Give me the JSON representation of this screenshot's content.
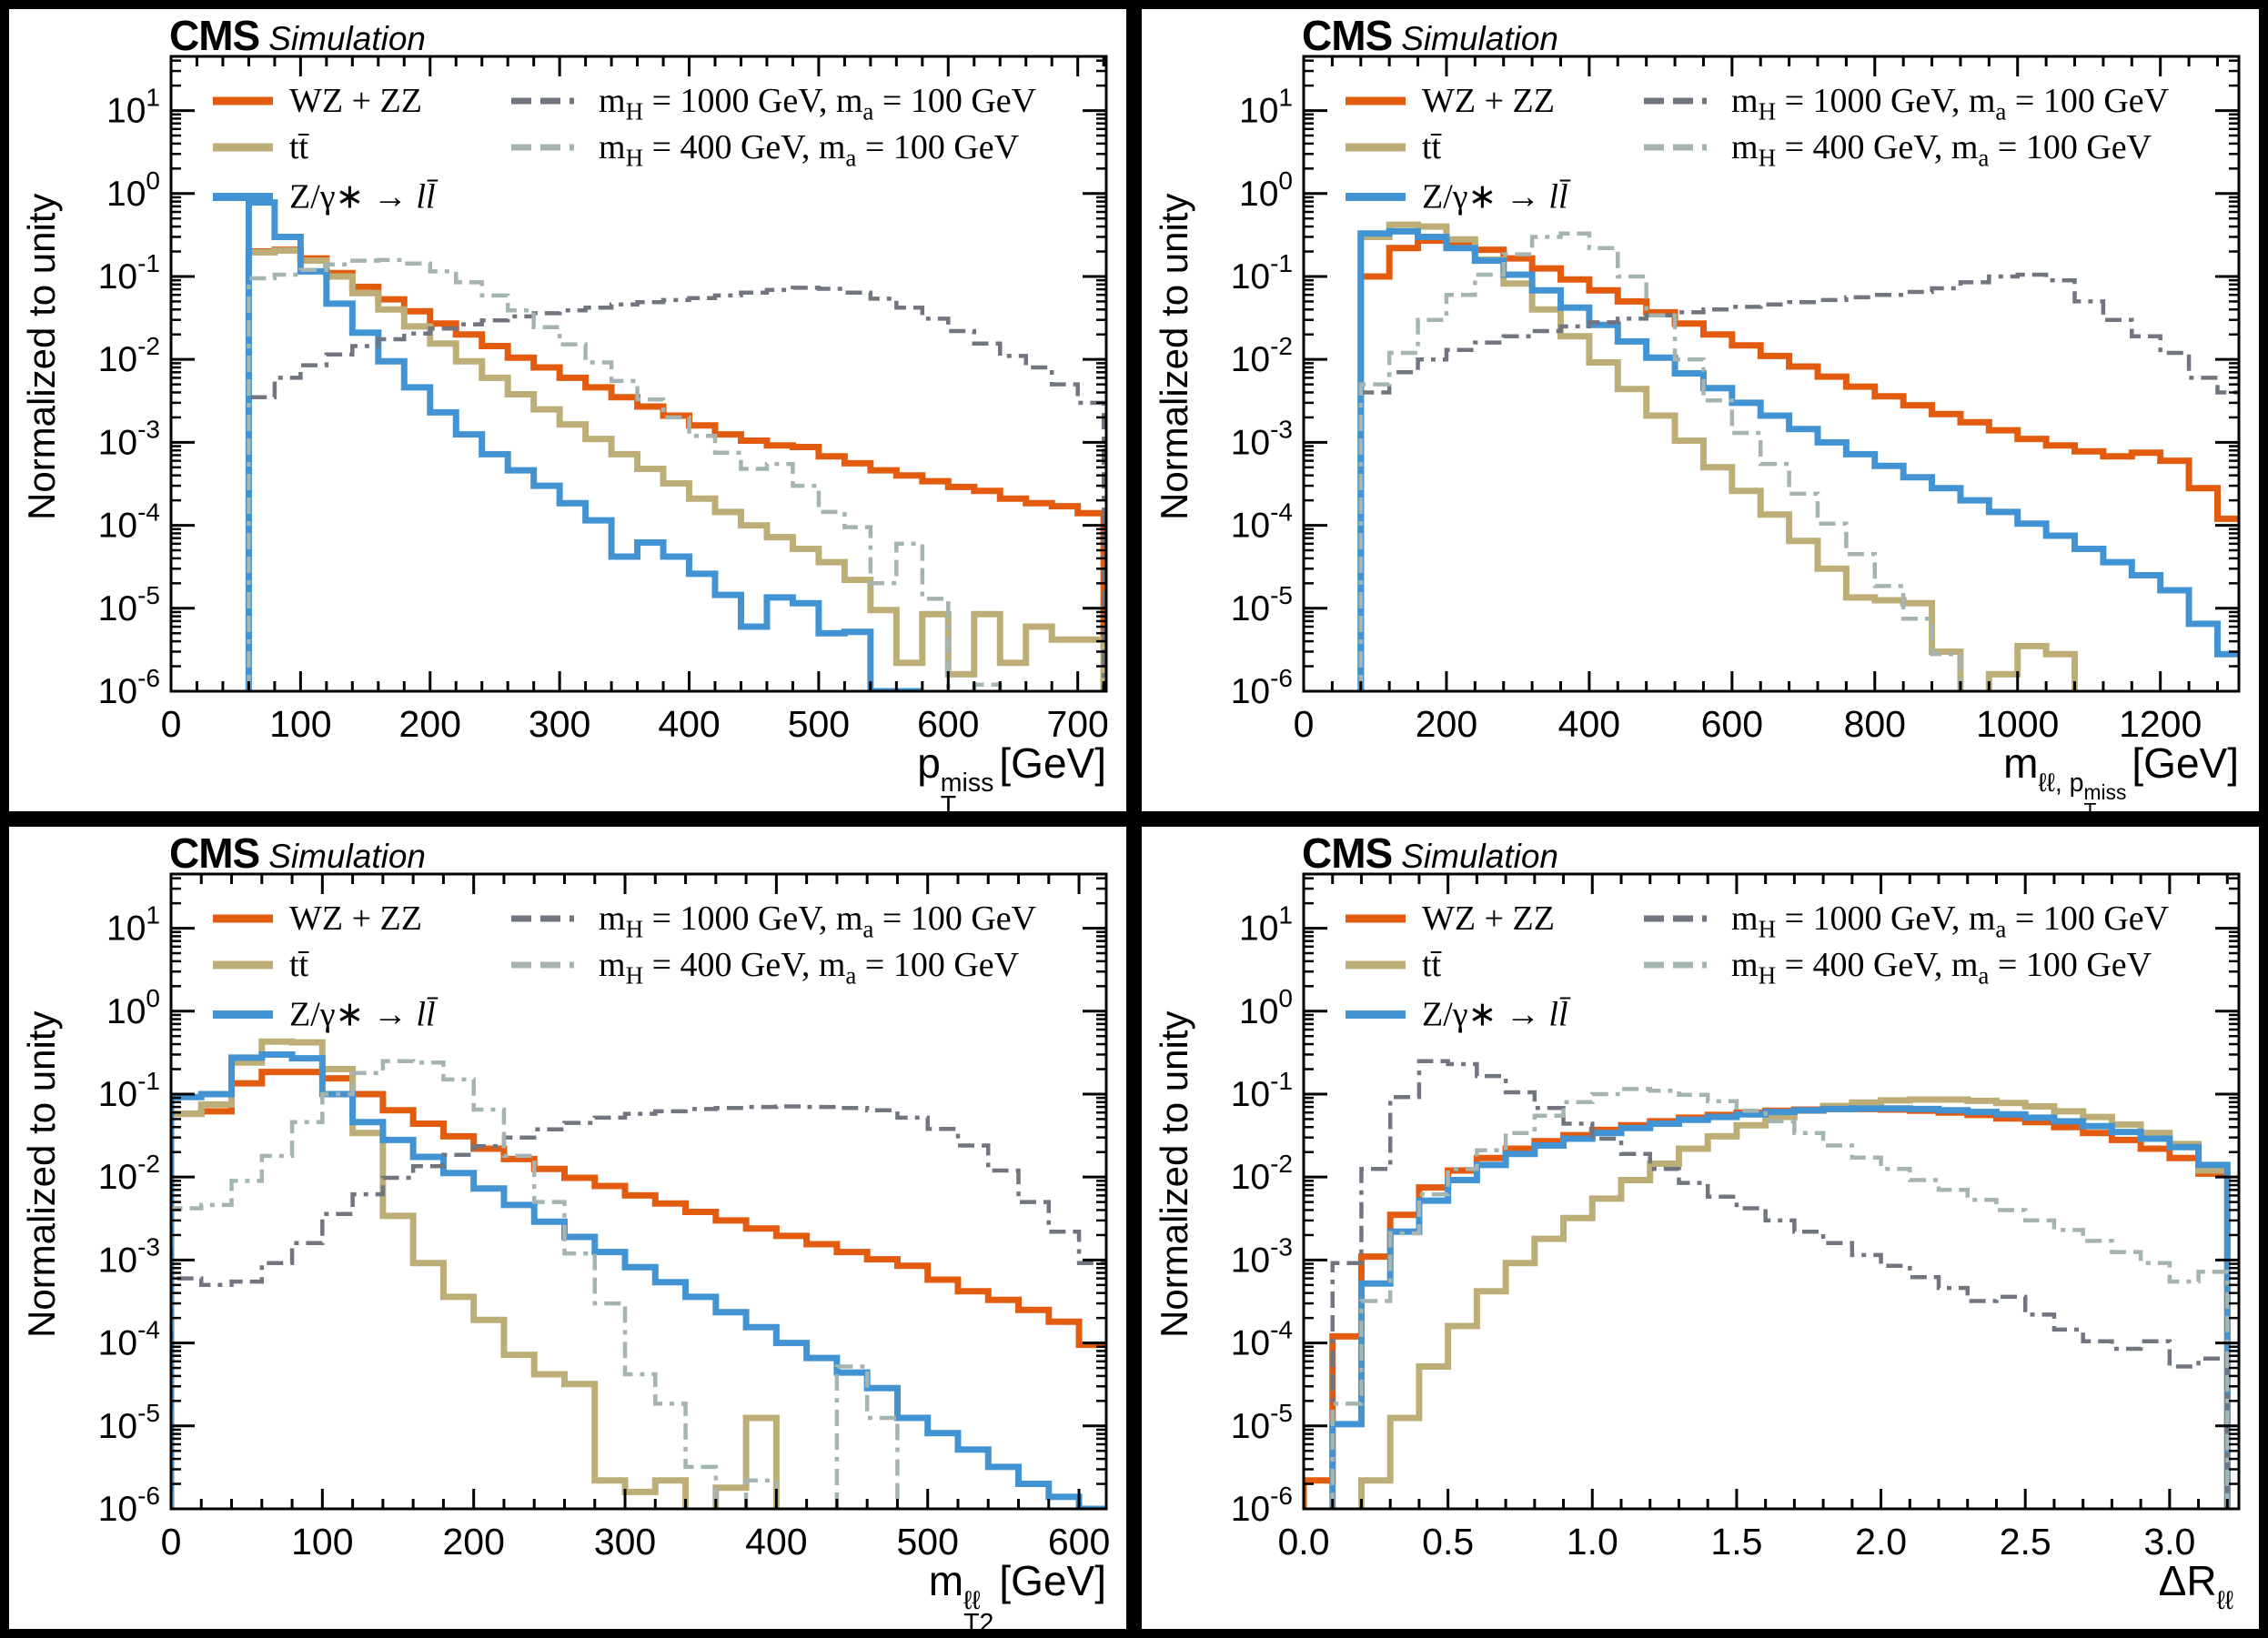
{
  "branding": {
    "cms": "CMS",
    "sim": "Simulation"
  },
  "ylabel": "Normalized to unity",
  "colors": {
    "wzzz": "#e35b0e",
    "ttbar": "#bcae76",
    "dy": "#4193d4",
    "mh1000": "#717580",
    "mh400": "#a4b4b0",
    "frame": "#000000"
  },
  "legend": {
    "wzzz_label": "WZ + ZZ",
    "ttbar_label": "tt̄",
    "dy_pre": "Z/γ∗ → ",
    "dy_lep": "ll̄",
    "sig1": {
      "m1": "m",
      "s1": "H",
      "t1": " = 1000 GeV, ",
      "m2": "m",
      "s2": "a",
      "t2": " = 100 GeV"
    },
    "sig2": {
      "m1": "m",
      "s1": "H",
      "t1": " = 400 GeV, ",
      "m2": "m",
      "s2": "a",
      "t2": " = 100 GeV"
    }
  },
  "panels": [
    {
      "xlabel": {
        "base": "p",
        "sup": "miss",
        "sub": "T",
        "unit": "[GeV]"
      }
    },
    {
      "xlabel": {
        "base": "m",
        "sub": "T",
        "sup1": "ℓℓ, p",
        "sup1_sup": "miss",
        "sup1_sub": "T",
        "unit": "[GeV]"
      }
    },
    {
      "xlabel": {
        "base": "m",
        "sup": "ℓℓ",
        "sub": "T2",
        "unit": "[GeV]"
      }
    },
    {
      "xlabel": {
        "base": "ΔR",
        "sup": "ℓℓ",
        "sub": "",
        "unit": ""
      }
    }
  ],
  "yticks_exponents": [
    1,
    0,
    -1,
    -2,
    -3,
    -4,
    -5,
    -6
  ],
  "chart_data": [
    {
      "type": "histogram-step",
      "ylog": true,
      "title": "CMS Simulation",
      "xlabel": "pT_miss [GeV]",
      "ylabel": "Normalized to unity",
      "xlim": [
        0,
        722
      ],
      "ylim": [
        1e-06,
        45
      ],
      "xticks": {
        "values": [
          0,
          100,
          200,
          300,
          400,
          500,
          600,
          700
        ],
        "labels": [
          "0",
          "100",
          "200",
          "300",
          "400",
          "500",
          "600",
          "700"
        ],
        "minor_step": 20
      },
      "x_start": 60,
      "bin_width": 20,
      "series": [
        {
          "name": "WZ + ZZ",
          "color": "wzzz",
          "line": "solid",
          "values": [
            0.2,
            0.21,
            0.165,
            0.11,
            0.075,
            0.053,
            0.038,
            0.027,
            0.02,
            0.0145,
            0.0105,
            0.008,
            0.006,
            0.0046,
            0.0035,
            0.0027,
            0.0021,
            0.0016,
            0.00125,
            0.00105,
            0.00092,
            0.00088,
            0.00068,
            0.00056,
            0.00046,
            0.0004,
            0.00034,
            0.00029,
            0.00026,
            0.00021,
            0.000185,
            0.00017,
            0.00014
          ]
        },
        {
          "name": "tt̄",
          "color": "ttbar",
          "line": "solid",
          "values": [
            0.195,
            0.205,
            0.155,
            0.1,
            0.063,
            0.04,
            0.025,
            0.0155,
            0.0095,
            0.006,
            0.0038,
            0.0025,
            0.00165,
            0.0011,
            0.00072,
            0.00048,
            0.00032,
            0.00021,
            0.000145,
            0.0001,
            7.2e-05,
            5.2e-05,
            3.6e-05,
            2.2e-05,
            9.5e-06,
            2.2e-06,
            8.5e-06,
            1.6e-06,
            8.5e-06,
            2.2e-06,
            6e-06,
            4.2e-06,
            4.2e-06
          ]
        },
        {
          "name": "Z/γ∗ → ll̄",
          "color": "dy",
          "line": "solid",
          "values": [
            0.78,
            0.3,
            0.115,
            0.047,
            0.021,
            0.0095,
            0.0046,
            0.0023,
            0.00125,
            0.00072,
            0.00046,
            0.0003,
            0.000185,
            0.000115,
            4.2e-05,
            6.2e-05,
            4.2e-05,
            2.6e-05,
            1.45e-05,
            6e-06,
            1.35e-05,
            1.15e-05,
            5e-06,
            5.2e-06,
            1e-06,
            1e-06,
            null,
            null,
            null,
            null,
            null,
            null,
            null
          ]
        },
        {
          "name": "mH = 1000 GeV, ma = 100 GeV",
          "color": "mh1000",
          "line": "dashdot",
          "values": [
            0.0035,
            0.006,
            0.0085,
            0.0115,
            0.0145,
            0.0175,
            0.0205,
            0.0235,
            0.0265,
            0.0295,
            0.033,
            0.036,
            0.039,
            0.042,
            0.046,
            0.049,
            0.052,
            0.055,
            0.059,
            0.064,
            0.069,
            0.073,
            0.071,
            0.064,
            0.054,
            0.042,
            0.031,
            0.022,
            0.0155,
            0.011,
            0.008,
            0.005,
            0.003
          ]
        },
        {
          "name": "mH = 400 GeV, ma = 100 GeV",
          "color": "mh400",
          "line": "dashdot",
          "values": [
            0.095,
            0.105,
            0.12,
            0.14,
            0.155,
            0.158,
            0.143,
            0.115,
            0.085,
            0.059,
            0.039,
            0.0245,
            0.0152,
            0.0092,
            0.0055,
            0.0033,
            0.002,
            0.0012,
            0.00075,
            0.00048,
            0.00055,
            0.0003,
            0.000145,
            9.5e-05,
            2e-05,
            6e-05,
            1.3e-05,
            null,
            1.2e-06,
            null,
            null,
            null,
            null
          ]
        }
      ]
    },
    {
      "type": "histogram-step",
      "ylog": true,
      "title": "CMS Simulation",
      "xlabel": "mT_ll_ptmiss [GeV]",
      "ylabel": "Normalized to unity",
      "xlim": [
        0,
        1310
      ],
      "ylim": [
        1e-06,
        45
      ],
      "xticks": {
        "values": [
          0,
          200,
          400,
          600,
          800,
          1000,
          1200
        ],
        "labels": [
          "0",
          "200",
          "400",
          "600",
          "800",
          "1000",
          "1200"
        ],
        "minor_step": 40
      },
      "x_start": 80,
      "bin_width": 40,
      "series": [
        {
          "name": "WZ + ZZ",
          "color": "wzzz",
          "line": "solid",
          "values": [
            0.1,
            0.22,
            0.27,
            0.25,
            0.21,
            0.165,
            0.125,
            0.092,
            0.068,
            0.05,
            0.037,
            0.027,
            0.02,
            0.0148,
            0.011,
            0.0082,
            0.0062,
            0.0047,
            0.0036,
            0.0028,
            0.0022,
            0.00175,
            0.0014,
            0.0011,
            0.00092,
            0.00078,
            0.00068,
            0.00075,
            0.0006,
            0.00028,
            0.00012
          ]
        },
        {
          "name": "tt̄",
          "color": "ttbar",
          "line": "solid",
          "values": [
            0.3,
            0.42,
            0.4,
            0.28,
            0.16,
            0.082,
            0.04,
            0.019,
            0.0092,
            0.0044,
            0.0021,
            0.00105,
            0.0005,
            0.00026,
            0.000135,
            6.5e-05,
            3e-05,
            1.35e-05,
            1.25e-05,
            1.15e-05,
            3e-06,
            null,
            1.6e-06,
            3.5e-06,
            2.8e-06,
            null,
            null,
            null,
            null,
            null,
            null
          ]
        },
        {
          "name": "Z/γ∗ → ll̄",
          "color": "dy",
          "line": "solid",
          "values": [
            0.33,
            0.35,
            0.3,
            0.22,
            0.155,
            0.105,
            0.068,
            0.042,
            0.026,
            0.0165,
            0.0105,
            0.0068,
            0.0045,
            0.003,
            0.0021,
            0.00145,
            0.001,
            0.00072,
            0.00052,
            0.00038,
            0.00028,
            0.0002,
            0.000145,
            0.000105,
            7.5e-05,
            5.2e-05,
            3.6e-05,
            2.5e-05,
            1.65e-05,
            6.5e-06,
            2.8e-06
          ]
        },
        {
          "name": "mH = 1000 GeV, ma = 100 GeV",
          "color": "mh1000",
          "line": "dashdot",
          "values": [
            0.004,
            0.007,
            0.01,
            0.013,
            0.016,
            0.019,
            0.022,
            0.025,
            0.028,
            0.031,
            0.034,
            0.037,
            0.04,
            0.043,
            0.046,
            0.049,
            0.052,
            0.056,
            0.06,
            0.065,
            0.072,
            0.085,
            0.1,
            0.105,
            0.09,
            0.05,
            0.03,
            0.019,
            0.012,
            0.006,
            0.004
          ]
        },
        {
          "name": "mH = 400 GeV, ma = 100 GeV",
          "color": "mh400",
          "line": "dashdot",
          "values": [
            0.005,
            0.012,
            0.03,
            0.06,
            0.105,
            0.185,
            0.3,
            0.33,
            0.22,
            0.1,
            0.034,
            0.01,
            0.0032,
            0.0013,
            0.00055,
            0.00024,
            0.000105,
            4.5e-05,
            1.85e-05,
            7.5e-06,
            2.8e-06,
            null,
            null,
            null,
            null,
            null,
            null,
            null,
            null,
            null,
            null
          ]
        }
      ]
    },
    {
      "type": "histogram-step",
      "ylog": true,
      "title": "CMS Simulation",
      "xlabel": "mT2_ll [GeV]",
      "ylabel": "Normalized to unity",
      "xlim": [
        0,
        618
      ],
      "ylim": [
        1e-06,
        45
      ],
      "xticks": {
        "values": [
          0,
          100,
          200,
          300,
          400,
          500,
          600
        ],
        "labels": [
          "0",
          "100",
          "200",
          "300",
          "400",
          "500",
          "600"
        ],
        "minor_step": 20
      },
      "x_start": 0,
      "bin_width": 20,
      "series": [
        {
          "name": "WZ + ZZ",
          "color": "wzzz",
          "line": "solid",
          "values": [
            0.058,
            0.062,
            0.135,
            0.185,
            0.185,
            0.155,
            0.1,
            0.064,
            0.044,
            0.031,
            0.022,
            0.0165,
            0.0125,
            0.0098,
            0.0078,
            0.006,
            0.0048,
            0.0038,
            0.003,
            0.0024,
            0.00195,
            0.00155,
            0.00125,
            0.00102,
            0.00085,
            0.00058,
            0.00042,
            0.00033,
            0.00025,
            0.00018,
            9.5e-05
          ]
        },
        {
          "name": "tt̄",
          "color": "ttbar",
          "line": "solid",
          "values": [
            0.058,
            0.075,
            0.24,
            0.43,
            0.42,
            0.2,
            0.034,
            0.0034,
            0.00092,
            0.00036,
            0.00019,
            7.2e-05,
            4.2e-05,
            3.2e-05,
            2.2e-06,
            1.6e-06,
            2.2e-06,
            null,
            1.8e-06,
            1.25e-05,
            null,
            null,
            null,
            null,
            null,
            null,
            null,
            null,
            null,
            null,
            null
          ]
        },
        {
          "name": "Z/γ∗ → ll̄",
          "color": "dy",
          "line": "solid",
          "values": [
            0.092,
            0.1,
            0.275,
            0.3,
            0.27,
            0.1,
            0.046,
            0.028,
            0.0175,
            0.0112,
            0.0073,
            0.0046,
            0.0029,
            0.0019,
            0.00125,
            0.00082,
            0.00054,
            0.00036,
            0.000235,
            0.000155,
            0.0001,
            6.6e-05,
            4.4e-05,
            2.85e-05,
            1.25e-05,
            8.2e-06,
            5.2e-06,
            3.2e-06,
            2e-06,
            1.4e-06,
            1e-06
          ]
        },
        {
          "name": "mH = 1000 GeV, ma = 100 GeV",
          "color": "mh1000",
          "line": "dashdot",
          "values": [
            0.0006,
            0.0005,
            0.00055,
            0.00092,
            0.0016,
            0.0036,
            0.0062,
            0.0098,
            0.0135,
            0.0185,
            0.0235,
            0.03,
            0.0375,
            0.045,
            0.052,
            0.058,
            0.062,
            0.066,
            0.068,
            0.07,
            0.071,
            0.07,
            0.068,
            0.064,
            0.052,
            0.038,
            0.024,
            0.012,
            0.005,
            0.0022,
            0.00092
          ]
        },
        {
          "name": "mH = 400 GeV, ma = 100 GeV",
          "color": "mh400",
          "line": "dashdot",
          "values": [
            0.0042,
            0.0046,
            0.009,
            0.018,
            0.046,
            0.1,
            0.18,
            0.25,
            0.24,
            0.15,
            0.065,
            0.018,
            0.005,
            0.0012,
            0.0003,
            4.2e-05,
            1.85e-05,
            3.2e-06,
            null,
            2.2e-06,
            null,
            null,
            5.2e-05,
            1.25e-05,
            null,
            null,
            null,
            null,
            null,
            null,
            null
          ]
        }
      ]
    },
    {
      "type": "histogram-step",
      "ylog": true,
      "title": "CMS Simulation",
      "xlabel": "DeltaR_ll",
      "ylabel": "Normalized to unity",
      "xlim": [
        0,
        3.24
      ],
      "ylim": [
        1e-06,
        45
      ],
      "xticks": {
        "values": [
          0,
          0.5,
          1.0,
          1.5,
          2.0,
          2.5,
          3.0
        ],
        "labels": [
          "0.0",
          "0.5",
          "1.0",
          "1.5",
          "2.0",
          "2.5",
          "3.0"
        ],
        "minor_step": 0.1
      },
      "x_start": 0,
      "bin_width": 0.1,
      "series": [
        {
          "name": "WZ + ZZ",
          "color": "wzzz",
          "line": "solid",
          "values": [
            2.2e-06,
            0.00012,
            0.0011,
            0.0035,
            0.0075,
            0.012,
            0.017,
            0.022,
            0.027,
            0.032,
            0.037,
            0.042,
            0.047,
            0.052,
            0.056,
            0.06,
            0.063,
            0.065,
            0.066,
            0.066,
            0.065,
            0.063,
            0.06,
            0.056,
            0.051,
            0.046,
            0.04,
            0.034,
            0.028,
            0.022,
            0.017,
            0.011
          ]
        },
        {
          "name": "tt̄",
          "color": "ttbar",
          "line": "solid",
          "values": [
            null,
            null,
            2.2e-06,
            1.25e-05,
            5.2e-05,
            0.00016,
            0.00042,
            0.00092,
            0.0018,
            0.0032,
            0.0055,
            0.0092,
            0.0145,
            0.022,
            0.031,
            0.042,
            0.053,
            0.063,
            0.072,
            0.079,
            0.084,
            0.086,
            0.086,
            0.083,
            0.078,
            0.071,
            0.062,
            0.053,
            0.043,
            0.034,
            0.025,
            0.012
          ]
        },
        {
          "name": "Z/γ∗ → ll̄",
          "color": "dy",
          "line": "solid",
          "values": [
            null,
            1.05e-05,
            0.00052,
            0.0022,
            0.0052,
            0.0092,
            0.014,
            0.019,
            0.024,
            0.029,
            0.034,
            0.039,
            0.044,
            0.049,
            0.053,
            0.057,
            0.061,
            0.064,
            0.066,
            0.067,
            0.067,
            0.066,
            0.064,
            0.061,
            0.057,
            0.052,
            0.047,
            0.041,
            0.035,
            0.029,
            0.023,
            0.014
          ]
        },
        {
          "name": "mH = 1000 GeV, ma = 100 GeV",
          "color": "mh1000",
          "line": "dashdot",
          "values": [
            null,
            0.00092,
            0.0125,
            0.092,
            0.25,
            0.23,
            0.165,
            0.105,
            0.068,
            0.044,
            0.029,
            0.019,
            0.0125,
            0.0085,
            0.0058,
            0.0042,
            0.003,
            0.0022,
            0.0016,
            0.00115,
            0.00085,
            0.00062,
            0.00046,
            0.00032,
            0.00036,
            0.00022,
            0.000145,
            0.000105,
            8.5e-05,
            0.000105,
            5.2e-05,
            6.5e-05
          ]
        },
        {
          "name": "mH = 400 GeV, ma = 100 GeV",
          "color": "mh400",
          "line": "dashdot",
          "values": [
            null,
            1.85e-05,
            0.00032,
            0.0021,
            0.0062,
            0.0125,
            0.021,
            0.034,
            0.055,
            0.08,
            0.1,
            0.115,
            0.11,
            0.098,
            0.082,
            0.063,
            0.047,
            0.034,
            0.024,
            0.0172,
            0.0125,
            0.0092,
            0.007,
            0.0053,
            0.004,
            0.003,
            0.0023,
            0.0017,
            0.00125,
            0.00092,
            0.00055,
            0.00072
          ]
        }
      ]
    }
  ]
}
